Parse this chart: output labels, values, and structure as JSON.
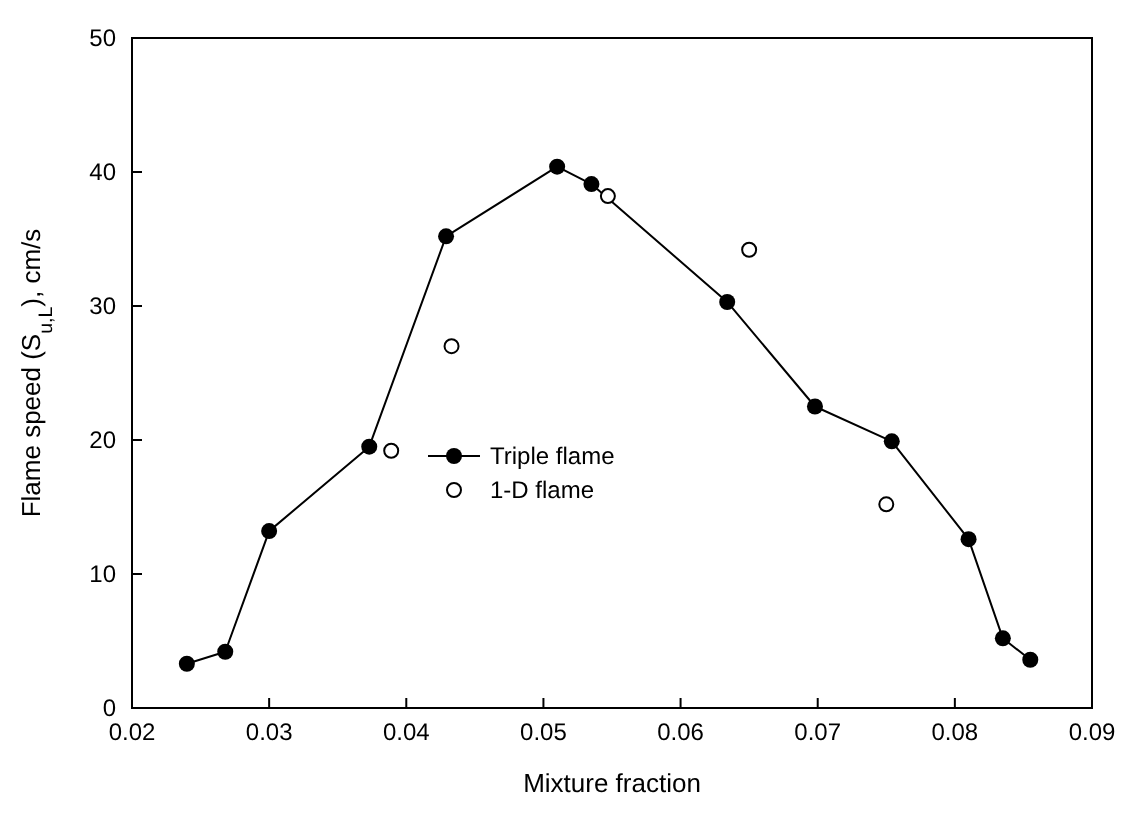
{
  "chart_data": {
    "type": "line",
    "xlabel": "Mixture fraction",
    "ylabel": "Flame speed (S$_{u,L}$), cm/s",
    "xlim": [
      0.02,
      0.09
    ],
    "xticks": [
      0.02,
      0.03,
      0.04,
      0.05,
      0.06,
      0.07,
      0.08,
      0.09
    ],
    "ylim": [
      0,
      50
    ],
    "yticks": [
      0,
      10,
      20,
      30,
      40,
      50
    ],
    "grid": false,
    "legend": "center",
    "marker": "circle",
    "line_style": "solid",
    "series": [
      {
        "name": "Triple flame",
        "color": "#000000",
        "x": [
          0.024,
          0.0268,
          0.03,
          0.0373,
          0.0429,
          0.051,
          0.0535,
          0.0634,
          0.0698,
          0.0754,
          0.081,
          0.0835,
          0.0855
        ],
        "values": [
          3.3,
          4.2,
          13.2,
          19.5,
          35.2,
          40.4,
          39.1,
          30.3,
          22.5,
          19.9,
          12.6,
          5.2,
          3.6
        ]
      },
      {
        "name": "1-D flame",
        "type": "scatter",
        "color": "#000000",
        "x": [
          0.0389,
          0.0433,
          0.0547,
          0.065,
          0.075
        ],
        "values": [
          19.2,
          27.0,
          38.2,
          34.2,
          15.2
        ]
      }
    ]
  }
}
